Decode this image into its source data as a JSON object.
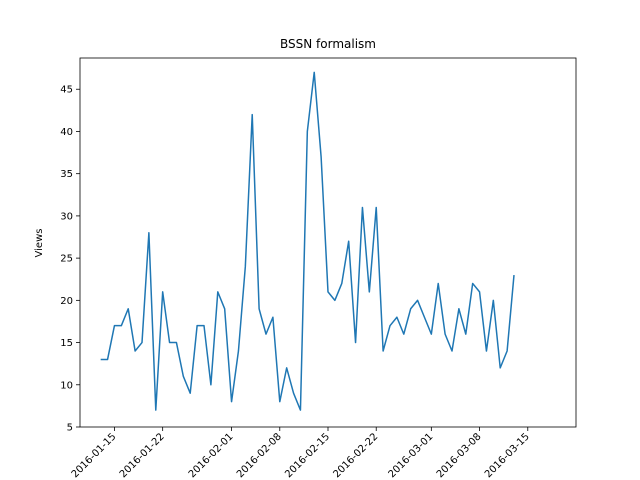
{
  "chart_data": {
    "type": "line",
    "title": "BSSN formalism",
    "xlabel": "",
    "ylabel": "Views",
    "ylim": [
      5,
      48.7
    ],
    "xlim": [
      "2016-01-10",
      "2016-03-22"
    ],
    "yticks": [
      5,
      10,
      15,
      20,
      25,
      30,
      35,
      40,
      45
    ],
    "xticks": [
      "2016-01-15",
      "2016-01-22",
      "2016-02-01",
      "2016-02-08",
      "2016-02-15",
      "2016-02-22",
      "2016-03-01",
      "2016-03-08",
      "2016-03-15"
    ],
    "xtick_labels": [
      "2016-01-15",
      "2016-01-22",
      "2016-02-01",
      "2016-02-08",
      "2016-02-15",
      "2016-02-22",
      "2016-03-01",
      "2016-03-08",
      "2016-03-15"
    ],
    "grid": false,
    "line_color": "#1f77b4",
    "series": [
      {
        "x": [
          "2016-01-13",
          "2016-01-14",
          "2016-01-15",
          "2016-01-16",
          "2016-01-17",
          "2016-01-18",
          "2016-01-19",
          "2016-01-20",
          "2016-01-21",
          "2016-01-22",
          "2016-01-23",
          "2016-01-24",
          "2016-01-25",
          "2016-01-26",
          "2016-01-27",
          "2016-01-28",
          "2016-01-29",
          "2016-01-30",
          "2016-01-31",
          "2016-02-01",
          "2016-02-02",
          "2016-02-03",
          "2016-02-04",
          "2016-02-05",
          "2016-02-06",
          "2016-02-07",
          "2016-02-08",
          "2016-02-09",
          "2016-02-10",
          "2016-02-11",
          "2016-02-12",
          "2016-02-13",
          "2016-02-14",
          "2016-02-15",
          "2016-02-16",
          "2016-02-17",
          "2016-02-18",
          "2016-02-19",
          "2016-02-20",
          "2016-02-21",
          "2016-02-22",
          "2016-02-23",
          "2016-02-24",
          "2016-02-25",
          "2016-02-26",
          "2016-02-27",
          "2016-02-28",
          "2016-02-29",
          "2016-03-01",
          "2016-03-02",
          "2016-03-03",
          "2016-03-04",
          "2016-03-05",
          "2016-03-06",
          "2016-03-07",
          "2016-03-08",
          "2016-03-09",
          "2016-03-10",
          "2016-03-11",
          "2016-03-12",
          "2016-03-13",
          "2016-03-14",
          "2016-03-15"
        ],
        "y": [
          13,
          13,
          17,
          17,
          19,
          14,
          15,
          28,
          7,
          21,
          15,
          15,
          11,
          9,
          17,
          17,
          10,
          21,
          19,
          8,
          14,
          24,
          42,
          19,
          16,
          18,
          8,
          12,
          9,
          7,
          40,
          47,
          37,
          21,
          20,
          22,
          27,
          15,
          31,
          21,
          31,
          14,
          17,
          18,
          16,
          19,
          20,
          18,
          16,
          22,
          16,
          14,
          19,
          16,
          22,
          21,
          14,
          20,
          12,
          14,
          23,
          null,
          null
        ]
      }
    ]
  }
}
